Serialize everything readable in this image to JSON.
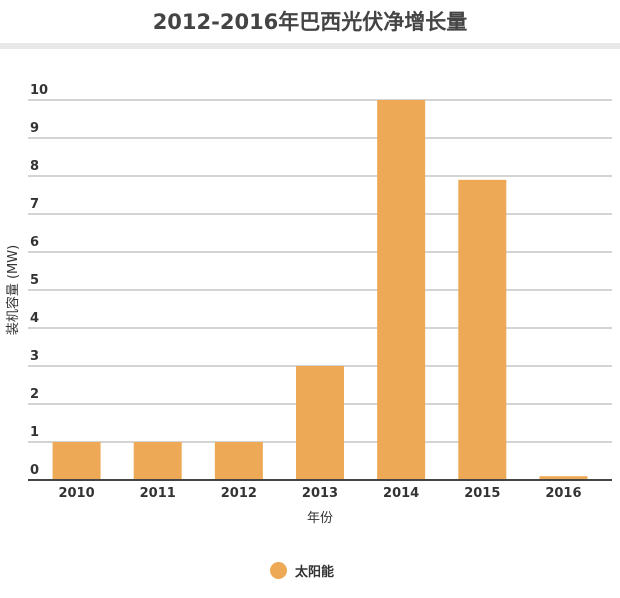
{
  "chart_data": {
    "type": "bar",
    "title": "2012-2016年巴西光伏净增长量",
    "xlabel": "年份",
    "ylabel": "装机容量 (MW)",
    "categories": [
      "2010",
      "2011",
      "2012",
      "2013",
      "2014",
      "2015",
      "2016"
    ],
    "series": [
      {
        "name": "太阳能",
        "values": [
          1,
          1,
          1,
          3,
          10,
          7.9,
          0.1
        ],
        "color": "#eea956"
      }
    ],
    "ylim": [
      0,
      10
    ],
    "yticks": [
      0,
      1,
      2,
      3,
      4,
      5,
      6,
      7,
      8,
      9,
      10
    ],
    "grid": true,
    "legend": "bottom"
  }
}
